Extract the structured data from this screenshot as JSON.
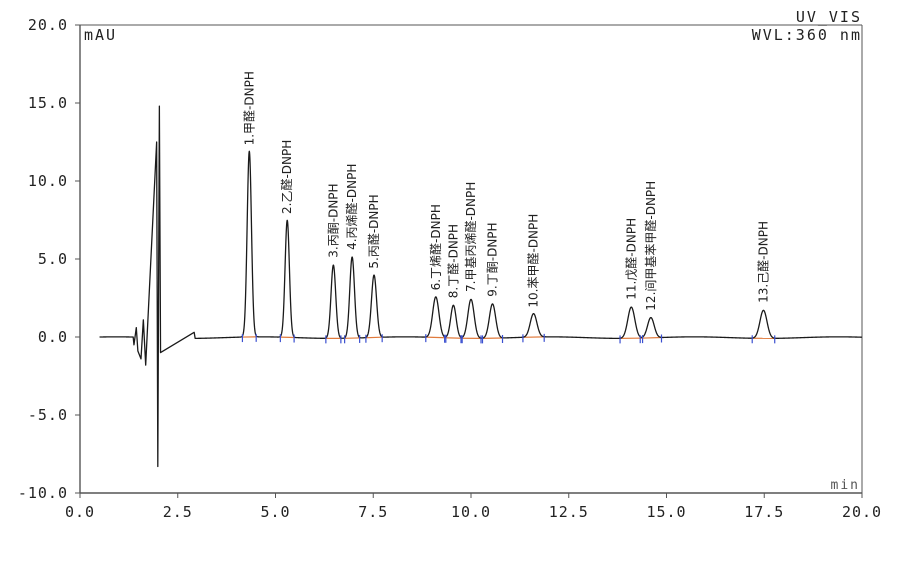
{
  "chart_data": {
    "type": "line",
    "title": "",
    "detector_label": "UV_VIS",
    "wavelength_label": "WVL:360 nm",
    "ylabel": "mAU",
    "xlabel": "min",
    "xlim": [
      0.0,
      20.0
    ],
    "ylim": [
      -10.0,
      20.0
    ],
    "x_ticks": [
      "0.0",
      "2.5",
      "5.0",
      "7.5",
      "10.0",
      "12.5",
      "15.0",
      "17.5",
      "20.0"
    ],
    "y_ticks": [
      "20.0",
      "15.0",
      "10.0",
      "5.0",
      "0.0",
      "-5.0",
      "-10.0"
    ],
    "grid": false,
    "colors": {
      "trace": "#1a1a1a",
      "baseline": "#e07a3c",
      "marker": "#3a4fd0",
      "frame": "#555555"
    },
    "solvent_disturbance": [
      {
        "x": 1.38,
        "y": -0.5
      },
      {
        "x": 1.44,
        "y": 0.6
      },
      {
        "x": 1.48,
        "y": -0.9
      },
      {
        "x": 1.56,
        "y": -1.4
      },
      {
        "x": 1.62,
        "y": 1.1
      },
      {
        "x": 1.68,
        "y": -1.8
      },
      {
        "x": 1.96,
        "y": 12.5
      },
      {
        "x": 1.99,
        "y": -8.3
      },
      {
        "x": 2.03,
        "y": 14.8
      },
      {
        "x": 2.06,
        "y": -1.0
      },
      {
        "x": 2.92,
        "y": 0.3
      }
    ],
    "peaks": [
      {
        "label": "1.甲醛-DNPH",
        "rt": 4.33,
        "height": 11.9,
        "width": 0.055
      },
      {
        "label": "2.乙醛-DNPH",
        "rt": 5.3,
        "height": 7.5,
        "width": 0.055
      },
      {
        "label": "3.丙酮-DNPH",
        "rt": 6.48,
        "height": 4.7,
        "width": 0.06
      },
      {
        "label": "4.丙烯醛-DNPH",
        "rt": 6.96,
        "height": 5.2,
        "width": 0.06
      },
      {
        "label": "5.丙醛-DNPH",
        "rt": 7.52,
        "height": 4.0,
        "width": 0.065
      },
      {
        "label": "6.丁烯醛-DNPH",
        "rt": 9.1,
        "height": 2.6,
        "width": 0.08
      },
      {
        "label": "8.丁醛-DNPH",
        "rt": 9.55,
        "height": 2.1,
        "width": 0.07
      },
      {
        "label": "7.甲基丙烯醛-DNPH",
        "rt": 10.0,
        "height": 2.5,
        "width": 0.08
      },
      {
        "label": "9.丁酮-DNPH",
        "rt": 10.55,
        "height": 2.2,
        "width": 0.08
      },
      {
        "label": "10.苯甲醛-DNPH",
        "rt": 11.6,
        "height": 1.5,
        "width": 0.085
      },
      {
        "label": "11.戊醛-DNPH",
        "rt": 14.1,
        "height": 2.0,
        "width": 0.09
      },
      {
        "label": "12.间甲基苯甲醛-DNPH",
        "rt": 14.6,
        "height": 1.3,
        "width": 0.085
      },
      {
        "label": "13.己醛-DNPH",
        "rt": 17.48,
        "height": 1.8,
        "width": 0.09
      }
    ]
  }
}
